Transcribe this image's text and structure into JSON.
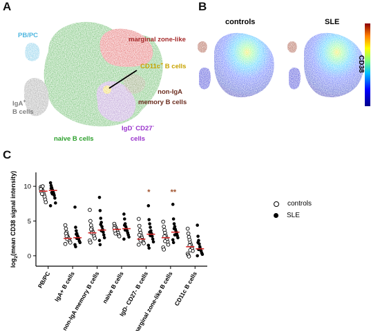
{
  "panels": {
    "A": "A",
    "B": "B",
    "C": "C"
  },
  "panel_a": {
    "labels": {
      "pbpc": "PB/PC",
      "marginal": "marginal zone-like",
      "cd11c_main": "CD11c",
      "cd11c_sup": "+",
      "cd11c_tail": " B cells",
      "noniga_1": "non-IgA",
      "noniga_2": "memory B cells",
      "iga_main": "IgA",
      "iga_sup": "+",
      "iga_2": "B cells",
      "naive": "naive B cells",
      "igd_1": "IgD",
      "igd_sup": "-",
      "igd_tail": " CD27",
      "igd_sup2": "-",
      "igd_2": "cells"
    },
    "colors": {
      "naive": "#2ca02c",
      "marginal": "#d62728",
      "iga": "#7f7f7f",
      "pbpc": "#4fb7e0",
      "igd": "#9467bd",
      "cd11c": "#e8c200",
      "noniga": "#8b3a2f"
    }
  },
  "panel_b": {
    "titles": [
      "controls",
      "SLE"
    ],
    "colorbar_label": "CD38",
    "colormap": [
      "#00008b",
      "#0000ff",
      "#00bfff",
      "#7fff7f",
      "#ffff00",
      "#ff7f00",
      "#8b0000"
    ]
  },
  "chart_data": {
    "type": "scatter",
    "ylabel": "log2(mean CD38 signal intensity)",
    "ylabel_main": "log",
    "ylabel_sub": "2",
    "ylabel_tail": "(mean CD38 signal intensity)",
    "ylim": [
      -1.5,
      12
    ],
    "yticks": [
      0,
      5,
      10
    ],
    "categories": [
      "PB/PC",
      "IgA+ B cells",
      "non-IgA memory B cells",
      "naive B cells",
      "IgD- CD27- B cells",
      "marginal zone-like B cells",
      "CD11c B cells"
    ],
    "significance": [
      {
        "category_index": 4,
        "label": "*"
      },
      {
        "category_index": 5,
        "label": "**"
      }
    ],
    "series": [
      {
        "name": "controls",
        "marker": "open-circle",
        "medians": [
          9.3,
          2.5,
          3.3,
          3.8,
          2.4,
          2.6,
          1.3
        ],
        "values": [
          [
            9.9,
            9.7,
            9.5,
            9.3,
            9.1,
            8.8,
            8.5,
            8.1,
            7.7,
            9.6,
            9.2,
            8.9,
            10.0
          ],
          [
            4.4,
            3.9,
            3.4,
            3.0,
            2.7,
            2.5,
            2.3,
            2.1,
            1.9,
            1.7,
            3.2,
            2.8,
            2.4
          ],
          [
            6.6,
            5.0,
            4.4,
            4.0,
            3.6,
            3.4,
            3.1,
            2.8,
            2.5,
            2.2,
            1.9,
            3.8,
            3.3
          ],
          [
            4.6,
            4.3,
            4.1,
            3.9,
            3.7,
            3.5,
            3.3,
            3.0,
            2.8,
            4.0,
            3.6,
            3.2
          ],
          [
            5.3,
            4.3,
            3.7,
            3.3,
            2.9,
            2.6,
            2.3,
            2.0,
            1.8,
            1.6,
            3.0,
            2.4,
            2.2
          ],
          [
            4.9,
            4.2,
            3.7,
            3.3,
            2.9,
            2.6,
            2.3,
            2.0,
            1.6,
            1.2,
            0.9,
            2.8,
            2.1
          ],
          [
            3.9,
            3.2,
            2.7,
            2.3,
            1.9,
            1.6,
            1.3,
            1.0,
            0.7,
            0.3,
            0.1,
            -0.1,
            1.5,
            0.8
          ]
        ]
      },
      {
        "name": "SLE",
        "marker": "filled-circle",
        "medians": [
          9.4,
          2.6,
          3.7,
          3.9,
          3.1,
          3.4,
          1.0
        ],
        "values": [
          [
            10.5,
            10.1,
            9.8,
            9.5,
            9.3,
            9.0,
            8.7,
            8.3,
            7.6,
            7.2,
            9.7,
            9.1,
            8.9
          ],
          [
            7.0,
            4.1,
            3.6,
            3.2,
            2.9,
            2.7,
            2.4,
            2.1,
            1.9,
            1.6,
            1.3,
            3.1,
            2.5
          ],
          [
            8.4,
            6.5,
            5.4,
            4.8,
            4.2,
            3.8,
            3.4,
            3.0,
            2.6,
            2.2,
            1.6,
            4.5,
            3.6
          ],
          [
            6.0,
            5.3,
            4.6,
            4.2,
            3.9,
            3.6,
            3.3,
            3.0,
            2.7,
            2.4,
            4.4,
            3.7
          ],
          [
            7.2,
            5.2,
            4.6,
            4.1,
            3.6,
            3.2,
            2.8,
            2.4,
            2.0,
            1.5,
            1.1,
            3.4,
            2.9
          ],
          [
            7.4,
            5.3,
            4.6,
            4.2,
            3.8,
            3.5,
            3.2,
            2.9,
            2.6,
            2.3,
            1.9,
            3.9,
            3.0
          ],
          [
            4.4,
            2.8,
            2.2,
            1.7,
            1.3,
            1.0,
            0.7,
            0.4,
            0.2,
            0.0,
            1.9,
            0.9
          ]
        ]
      }
    ],
    "median_color": "#d62728",
    "legend": [
      "controls",
      "SLE"
    ]
  }
}
